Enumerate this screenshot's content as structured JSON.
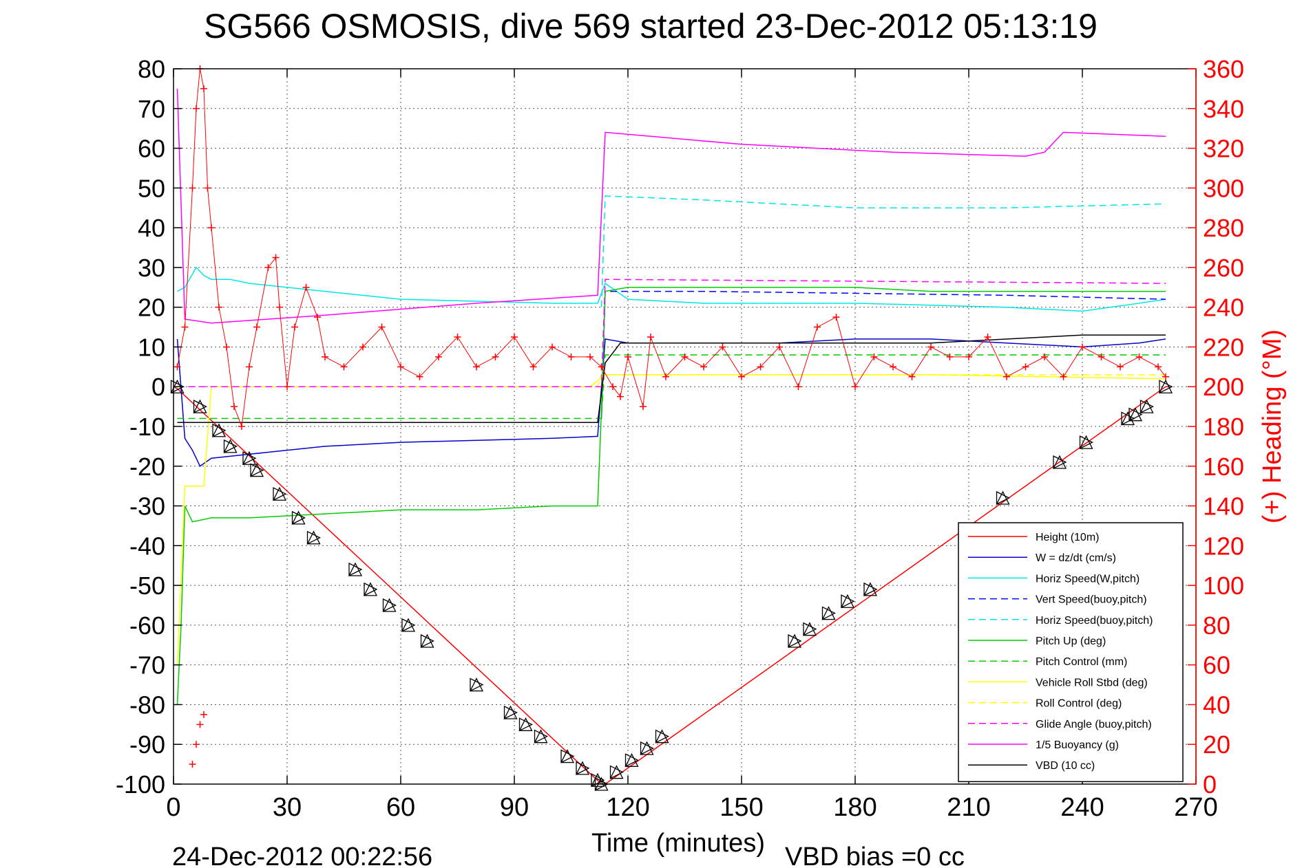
{
  "chart_data": {
    "type": "line",
    "title": "SG566 OSMOSIS, dive 569 started 23-Dec-2012 05:13:19",
    "xlabel": "Time (minutes)",
    "ylabel": "",
    "y2label": "(+) Heading (°M)",
    "footer_left": "24-Dec-2012 00:22:56",
    "footer_right": "VBD bias =0 cc",
    "xlim": [
      0,
      270
    ],
    "ylim": [
      -100,
      80
    ],
    "y2lim": [
      0,
      360
    ],
    "xticks": [
      "0",
      "30",
      "60",
      "90",
      "120",
      "150",
      "180",
      "210",
      "240",
      "270"
    ],
    "yticks": [
      "80",
      "70",
      "60",
      "50",
      "40",
      "30",
      "20",
      "10",
      "0",
      "-10",
      "-20",
      "-30",
      "-40",
      "-50",
      "-60",
      "-70",
      "-80",
      "-90",
      "-100"
    ],
    "y2ticks": [
      "360",
      "340",
      "320",
      "300",
      "280",
      "260",
      "240",
      "220",
      "200",
      "180",
      "160",
      "140",
      "120",
      "100",
      "80",
      "60",
      "40",
      "20",
      "0"
    ],
    "grid": true,
    "legend_position": "bottom-right",
    "series": [
      {
        "name": "Height (10m)",
        "color": "#ff0000",
        "dash": "solid",
        "x": [
          0,
          1,
          113,
          114,
          262,
          263
        ],
        "y": [
          0,
          -0.5,
          -100,
          -100,
          0,
          0
        ]
      },
      {
        "name": "W = dz/dt (cm/s)",
        "color": "#0000cc",
        "dash": "solid",
        "x": [
          1,
          3,
          5,
          7,
          10,
          20,
          40,
          60,
          80,
          100,
          112,
          114,
          120,
          140,
          160,
          180,
          200,
          220,
          240,
          255,
          262
        ],
        "y": [
          12,
          -13,
          -16,
          -20,
          -18,
          -17,
          -15,
          -14,
          -13.5,
          -13,
          -12.5,
          12,
          11,
          11,
          11,
          12,
          12,
          11,
          10,
          11,
          12
        ]
      },
      {
        "name": "Horiz Speed(W,pitch)",
        "color": "#00e5e5",
        "dash": "solid",
        "x": [
          1,
          3,
          6,
          8,
          10,
          15,
          20,
          40,
          60,
          80,
          100,
          112,
          114,
          120,
          140,
          160,
          180,
          200,
          220,
          240,
          255,
          262
        ],
        "y": [
          24,
          25,
          30,
          28,
          27,
          27,
          26,
          24,
          22,
          21.5,
          21,
          21,
          26,
          22,
          21,
          21,
          21,
          20.5,
          20,
          19,
          21,
          22
        ]
      },
      {
        "name": "Vert Speed(buoy,pitch)",
        "color": "#0000ff",
        "dash": "dashed",
        "x": [
          113,
          114,
          140,
          180,
          220,
          262
        ],
        "y": [
          -8,
          24,
          24,
          23.5,
          23,
          22
        ]
      },
      {
        "name": "Horiz Speed(buoy,pitch)",
        "color": "#00e5e5",
        "dash": "dashed",
        "x": [
          113,
          114,
          140,
          180,
          220,
          262
        ],
        "y": [
          20,
          48,
          47,
          45,
          45,
          46
        ]
      },
      {
        "name": "Pitch Up (deg)",
        "color": "#00cc00",
        "dash": "solid",
        "x": [
          1,
          2,
          3,
          5,
          10,
          20,
          40,
          60,
          80,
          100,
          112,
          113,
          114,
          120,
          140,
          160,
          180,
          200,
          220,
          240,
          262
        ],
        "y": [
          -80,
          -60,
          -30,
          -34,
          -33,
          -33,
          -32,
          -31,
          -31,
          -30,
          -30,
          -6,
          24,
          25,
          25,
          25,
          25,
          24,
          24,
          24,
          24
        ]
      },
      {
        "name": "Pitch Control (mm)",
        "color": "#00cc00",
        "dash": "dashed",
        "x": [
          1,
          2,
          112,
          113,
          114,
          262
        ],
        "y": [
          -8,
          -8,
          -8,
          -8,
          8,
          8
        ]
      },
      {
        "name": "Vehicle Roll Stbd (deg)",
        "color": "#ffff00",
        "dash": "solid",
        "x": [
          1,
          3,
          5,
          8,
          10,
          20,
          60,
          110,
          114,
          160,
          200,
          262
        ],
        "y": [
          -70,
          -25,
          -25,
          -25,
          0,
          0,
          0,
          0,
          3,
          3,
          3,
          2
        ]
      },
      {
        "name": "Roll Control (deg)",
        "color": "#ffff00",
        "dash": "dashed",
        "x": [
          1,
          112,
          113,
          262
        ],
        "y": [
          0,
          0,
          3,
          3
        ]
      },
      {
        "name": "Glide Angle (buoy,pitch)",
        "color": "#ff00ff",
        "dash": "dashed",
        "x": [
          1,
          112,
          113,
          114,
          262
        ],
        "y": [
          0,
          0,
          0,
          27,
          26
        ]
      },
      {
        "name": "1/5 Buoyancy (g)",
        "color": "#ff00ff",
        "dash": "solid",
        "x": [
          1,
          3,
          10,
          40,
          80,
          112,
          114,
          150,
          190,
          225,
          230,
          235,
          262
        ],
        "y": [
          75,
          17,
          16,
          18,
          21,
          23,
          64,
          61,
          59,
          58,
          59,
          64,
          63
        ]
      },
      {
        "name": "VBD (10 cc)",
        "color": "#000000",
        "dash": "solid",
        "x": [
          1,
          2,
          112,
          114,
          118,
          200,
          240,
          262
        ],
        "y": [
          -9,
          -9,
          -9,
          6,
          11,
          11,
          13,
          13
        ]
      }
    ],
    "heading_series": {
      "name": "(+) Heading (°M)",
      "marker": "+",
      "color": "#ff0000",
      "axis": "right",
      "x": [
        1,
        3,
        5,
        6,
        7,
        8,
        9,
        10,
        12,
        14,
        16,
        18,
        20,
        22,
        25,
        27,
        28,
        30,
        32,
        35,
        38,
        40,
        45,
        50,
        55,
        60,
        65,
        70,
        75,
        80,
        85,
        90,
        95,
        100,
        105,
        110,
        113,
        116,
        118,
        120,
        124,
        126,
        130,
        135,
        140,
        145,
        150,
        155,
        160,
        165,
        170,
        175,
        180,
        185,
        190,
        195,
        200,
        205,
        210,
        215,
        220,
        225,
        230,
        235,
        240,
        245,
        250,
        255,
        260,
        262
      ],
      "y": [
        210,
        230,
        300,
        340,
        360,
        350,
        300,
        280,
        240,
        220,
        190,
        180,
        210,
        230,
        260,
        265,
        240,
        200,
        230,
        250,
        235,
        215,
        210,
        220,
        230,
        210,
        205,
        215,
        225,
        210,
        215,
        225,
        210,
        220,
        215,
        215,
        210,
        200,
        195,
        215,
        190,
        225,
        205,
        215,
        210,
        220,
        205,
        210,
        220,
        200,
        230,
        235,
        200,
        215,
        210,
        205,
        220,
        215,
        215,
        225,
        205,
        210,
        215,
        205,
        220,
        215,
        210,
        215,
        210,
        205
      ]
    },
    "heading_early_lower": {
      "x": [
        5,
        6,
        7,
        8
      ],
      "y": [
        10,
        20,
        30,
        35
      ]
    },
    "markers": {
      "shape": "triangle",
      "x": [
        1,
        7,
        12,
        15,
        20,
        22,
        28,
        33,
        37,
        48,
        52,
        57,
        62,
        67,
        80,
        89,
        93,
        97,
        104,
        108,
        112,
        113,
        117,
        121,
        125,
        129,
        164,
        168,
        173,
        178,
        184,
        219,
        234,
        241,
        252,
        254,
        257,
        262
      ],
      "y": [
        0,
        -5,
        -11,
        -15,
        -18,
        -21,
        -27,
        -33,
        -38,
        -46,
        -51,
        -55,
        -60,
        -64,
        -75,
        -82,
        -85,
        -88,
        -93,
        -96,
        -99,
        -100,
        -97,
        -94,
        -91,
        -88,
        -64,
        -61,
        -57,
        -54,
        -51,
        -28,
        -19,
        -14,
        -8,
        -7,
        -5,
        0
      ]
    }
  }
}
